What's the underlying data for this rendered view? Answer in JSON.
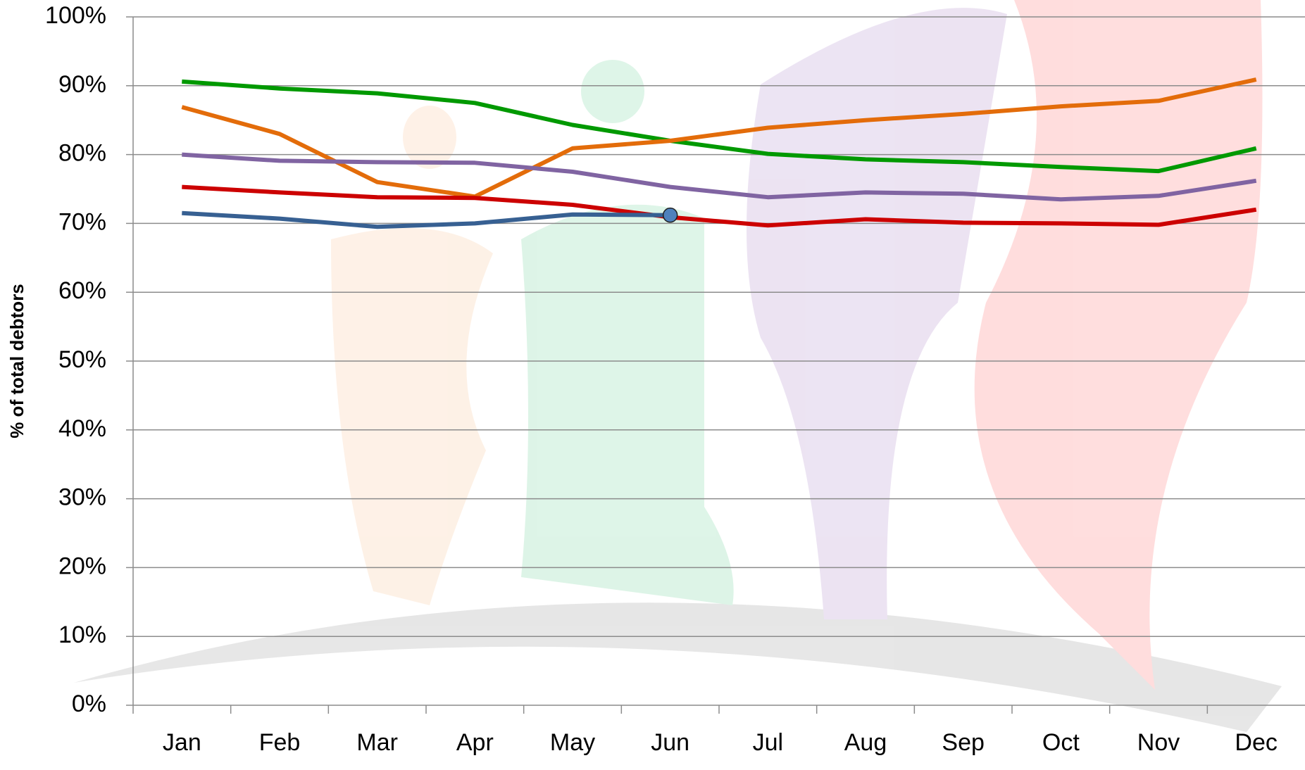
{
  "chart_data": {
    "type": "line",
    "y_label": "% of total debtors",
    "categories": [
      "Jan",
      "Feb",
      "Mar",
      "Apr",
      "May",
      "Jun",
      "Jul",
      "Aug",
      "Sep",
      "Oct",
      "Nov",
      "Dec"
    ],
    "series": [
      {
        "color": "#009900",
        "values": [
          90.6,
          89.6,
          88.9,
          87.5,
          84.3,
          82,
          80.1,
          79.3,
          78.9,
          78.2,
          77.6,
          80.9
        ]
      },
      {
        "color": "#e36c0a",
        "values": [
          86.9,
          83,
          76,
          73.9,
          80.9,
          82,
          83.9,
          85,
          85.9,
          87,
          87.8,
          90.9
        ]
      },
      {
        "color": "#8064a2",
        "values": [
          80,
          79.1,
          78.9,
          78.8,
          77.5,
          75.3,
          73.8,
          74.5,
          74.3,
          73.5,
          74,
          76.2
        ]
      },
      {
        "color": "#cc0000",
        "values": [
          75.3,
          74.5,
          73.8,
          73.7,
          72.7,
          70.9,
          69.7,
          70.6,
          70.1,
          70,
          69.8,
          72
        ]
      },
      {
        "color": "#376092",
        "marker_color": "#4f81bd",
        "last_point_marker": true,
        "values": [
          71.5,
          70.7,
          69.5,
          70,
          71.3,
          71.2,
          null,
          null,
          null,
          null,
          null,
          null
        ]
      }
    ],
    "ylim": [
      0,
      100
    ],
    "yticks": [
      {
        "value": 0,
        "label": "0%"
      },
      {
        "value": 10,
        "label": "10%"
      },
      {
        "value": 20,
        "label": "20%"
      },
      {
        "value": 30,
        "label": "30%"
      },
      {
        "value": 40,
        "label": "40%"
      },
      {
        "value": 50,
        "label": "50%"
      },
      {
        "value": 60,
        "label": "60%"
      },
      {
        "value": 70,
        "label": "70%"
      },
      {
        "value": 80,
        "label": "80%"
      },
      {
        "value": 90,
        "label": "90%"
      },
      {
        "value": 100,
        "label": "100%"
      }
    ],
    "grid": true
  }
}
